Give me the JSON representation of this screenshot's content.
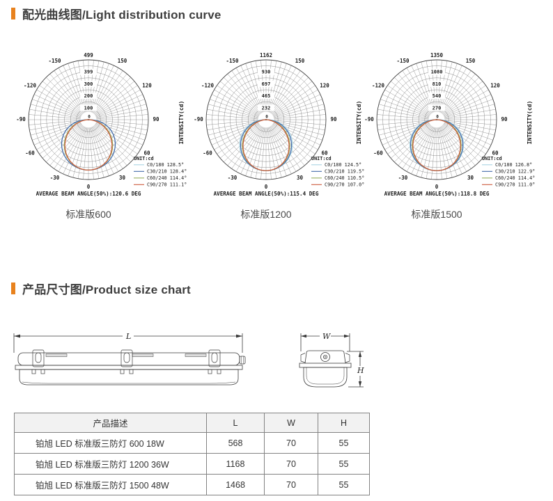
{
  "accent_color": "#e8821e",
  "sections": {
    "light_distribution": {
      "title": "配光曲线图/Light distribution curve"
    },
    "product_size": {
      "title": "产品尺寸图/Product size chart"
    }
  },
  "chart_data": [
    {
      "type": "polar_light_distribution",
      "caption": "标准版600",
      "unit_label": "UNIT:cd",
      "axis_label": "INTENSITY(cd)",
      "scale_max": 499,
      "radial_ticks": [
        100,
        200,
        300,
        399,
        499
      ],
      "center_tick": "0",
      "angle_ticks": [
        -150,
        -120,
        -90,
        -60,
        -30,
        0,
        30,
        60,
        90,
        120,
        150
      ],
      "average_beam_angle_label": "AVERAGE BEAM ANGLE(50%):120.6 DEG",
      "average_beam_angle_deg": 120.6,
      "peak_cd": 420,
      "series": [
        {
          "name": "C0/180",
          "label": "C0/180 128.5°",
          "beam_angle_deg": 128.5,
          "color": "#a8d3e2"
        },
        {
          "name": "C30/210",
          "label": "C30/210 128.4°",
          "beam_angle_deg": 128.4,
          "color": "#4068a8"
        },
        {
          "name": "C60/240",
          "label": "C60/240 114.4°",
          "beam_angle_deg": 114.4,
          "color": "#95ad5e"
        },
        {
          "name": "C90/270",
          "label": "C90/270 111.1°",
          "beam_angle_deg": 111.1,
          "color": "#cc5a3a"
        }
      ]
    },
    {
      "type": "polar_light_distribution",
      "caption": "标准版1200",
      "unit_label": "UNIT:cd",
      "axis_label": "INTENSITY(cd)",
      "scale_max": 1162,
      "radial_ticks": [
        232,
        465,
        697,
        930,
        1162
      ],
      "center_tick": "0",
      "angle_ticks": [
        -150,
        -120,
        -90,
        -60,
        -30,
        0,
        30,
        60,
        90,
        120,
        150
      ],
      "average_beam_angle_label": "AVERAGE BEAM ANGLE(50%):115.4 DEG",
      "average_beam_angle_deg": 115.4,
      "peak_cd": 990,
      "series": [
        {
          "name": "C0/180",
          "label": "C0/180 124.5°",
          "beam_angle_deg": 124.5,
          "color": "#a8d3e2"
        },
        {
          "name": "C30/210",
          "label": "C30/210 119.5°",
          "beam_angle_deg": 119.5,
          "color": "#4068a8"
        },
        {
          "name": "C60/240",
          "label": "C60/240 110.5°",
          "beam_angle_deg": 110.5,
          "color": "#95ad5e"
        },
        {
          "name": "C90/270",
          "label": "C90/270 107.0°",
          "beam_angle_deg": 107.0,
          "color": "#cc5a3a"
        }
      ]
    },
    {
      "type": "polar_light_distribution",
      "caption": "标准版1500",
      "unit_label": "UNIT:cd",
      "axis_label": "INTENSITY(cd)",
      "scale_max": 1350,
      "radial_ticks": [
        270,
        540,
        810,
        1080,
        1350
      ],
      "center_tick": "0",
      "angle_ticks": [
        -150,
        -120,
        -90,
        -60,
        -30,
        0,
        30,
        60,
        90,
        120,
        150
      ],
      "average_beam_angle_label": "AVERAGE BEAM ANGLE(50%):118.8 DEG",
      "average_beam_angle_deg": 118.8,
      "peak_cd": 1150,
      "series": [
        {
          "name": "C0/180",
          "label": "C0/180 126.8°",
          "beam_angle_deg": 126.8,
          "color": "#a8d3e2"
        },
        {
          "name": "C30/210",
          "label": "C30/210 122.9°",
          "beam_angle_deg": 122.9,
          "color": "#4068a8"
        },
        {
          "name": "C60/240",
          "label": "C60/240 114.4°",
          "beam_angle_deg": 114.4,
          "color": "#95ad5e"
        },
        {
          "name": "C90/270",
          "label": "C90/270 111.0°",
          "beam_angle_deg": 111.0,
          "color": "#cc5a3a"
        }
      ]
    }
  ],
  "drawings": {
    "side_view_dim": "L",
    "end_view_width_dim": "W",
    "end_view_height_dim": "H"
  },
  "size_table": {
    "headers": [
      "产品描述",
      "L",
      "W",
      "H"
    ],
    "rows": [
      [
        "铂旭 LED 标准版三防灯 600 18W",
        "568",
        "70",
        "55"
      ],
      [
        "铂旭 LED 标准版三防灯 1200 36W",
        "1168",
        "70",
        "55"
      ],
      [
        "铂旭 LED 标准版三防灯 1500 48W",
        "1468",
        "70",
        "55"
      ]
    ]
  }
}
